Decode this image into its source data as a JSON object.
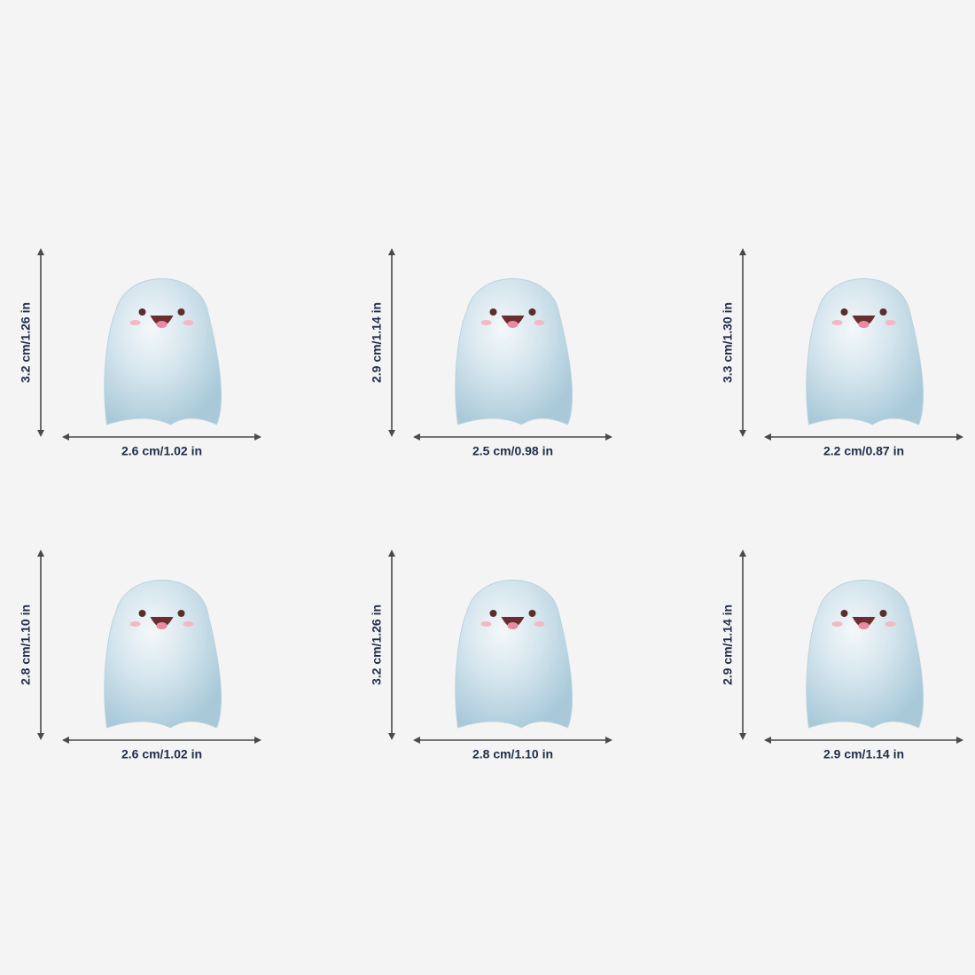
{
  "items": [
    {
      "height": "3.2 cm/1.26 in",
      "width": "2.6 cm/1.02 in"
    },
    {
      "height": "2.9 cm/1.14 in",
      "width": "2.5 cm/0.98 in"
    },
    {
      "height": "3.3 cm/1.30 in",
      "width": "2.2 cm/0.87 in"
    },
    {
      "height": "2.8 cm/1.10 in",
      "width": "2.6 cm/1.02 in"
    },
    {
      "height": "3.2 cm/1.26 in",
      "width": "2.8 cm/1.10 in"
    },
    {
      "height": "2.9 cm/1.14 in",
      "width": "2.9 cm/1.14 in"
    }
  ]
}
